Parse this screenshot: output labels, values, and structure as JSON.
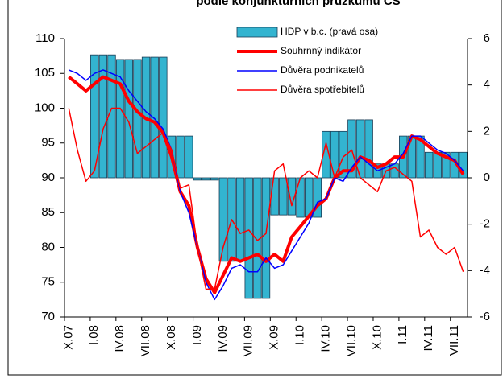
{
  "chart_data": {
    "type": "combo",
    "title": "podle konjunkturních průzkumů ČS",
    "categories": [
      "X.07",
      null,
      null,
      "I.08",
      null,
      null,
      "IV.08",
      null,
      null,
      "VII.08",
      null,
      null,
      "X.08",
      null,
      null,
      "I.09",
      null,
      null,
      "IV.09",
      null,
      null,
      "VII.09",
      null,
      null,
      "X.09",
      null,
      null,
      "I.10",
      null,
      null,
      "IV.10",
      null,
      null,
      "VII.10",
      null,
      null,
      "X.10",
      null,
      null,
      "I.11",
      null,
      null,
      "IV.11",
      null,
      null,
      "VII.11",
      null
    ],
    "series": [
      {
        "name": "HDP v b.c. (pravá osa)",
        "type": "bar",
        "axis": "y2",
        "color": "#33b4d0",
        "values": [
          null,
          null,
          null,
          5.3,
          5.3,
          5.3,
          5.1,
          5.1,
          5.1,
          5.2,
          5.2,
          5.2,
          1.8,
          1.8,
          1.8,
          -0.1,
          -0.1,
          -0.1,
          -3.6,
          -3.6,
          -3.6,
          -5.2,
          -5.2,
          -5.2,
          -1.6,
          -1.6,
          -1.6,
          -1.7,
          -1.7,
          -1.7,
          2.0,
          2.0,
          2.0,
          2.5,
          2.5,
          2.5,
          0.6,
          0.6,
          0.6,
          1.8,
          1.8,
          1.8,
          1.1,
          1.1,
          1.1,
          1.1,
          1.1
        ]
      },
      {
        "name": "Souhrnný indikátor",
        "type": "line",
        "color": "#ff0000",
        "width": 4,
        "values": [
          104.5,
          103.5,
          102.5,
          103.5,
          104.5,
          104,
          103.5,
          101,
          99.5,
          98.5,
          98,
          96.5,
          93,
          88,
          86,
          80,
          75.5,
          73.5,
          76,
          78.5,
          78,
          78.5,
          79,
          78,
          79,
          78,
          81.5,
          83,
          84.5,
          86,
          87,
          90,
          91,
          91,
          93,
          92.5,
          91.5,
          92,
          93,
          93,
          96,
          95.5,
          94.5,
          93.5,
          93,
          92.5,
          90.5
        ]
      },
      {
        "name": "Důvěra podnikatelů",
        "type": "line",
        "color": "#0000ff",
        "width": 1.5,
        "values": [
          105.5,
          105,
          104,
          105,
          105.5,
          105,
          104.5,
          102.5,
          101,
          99.5,
          98.5,
          97,
          94,
          88,
          85,
          80,
          75,
          72.5,
          74.5,
          77,
          77.5,
          76.5,
          76.5,
          78.5,
          77,
          77.5,
          79.5,
          81.5,
          83.5,
          86.5,
          87,
          90,
          89.5,
          91.5,
          93,
          92,
          91,
          91.5,
          92,
          93.5,
          96,
          96,
          95,
          94,
          93.5,
          92.5,
          91
        ]
      },
      {
        "name": "Důvěra spotřebitelů",
        "type": "line",
        "color": "#ff0000",
        "width": 1.5,
        "values": [
          100,
          94,
          89.5,
          91,
          97,
          100,
          100,
          98,
          93.5,
          94.5,
          95.5,
          96.5,
          94,
          88.5,
          89,
          80,
          74,
          74,
          80,
          84,
          82,
          82.5,
          81,
          82,
          91,
          92,
          86,
          90,
          91,
          90,
          95,
          90,
          93,
          94,
          90,
          89,
          88,
          91,
          91.5,
          90.5,
          89.5,
          81.5,
          82.5,
          80,
          79,
          80,
          76.5
        ]
      }
    ],
    "ylim": [
      70,
      110
    ],
    "yticks": [
      70,
      75,
      80,
      85,
      90,
      95,
      100,
      105,
      110
    ],
    "y2lim": [
      -6,
      6
    ],
    "y2ticks": [
      -6,
      -4,
      -2,
      0,
      2,
      4,
      6
    ],
    "legend": "top-right"
  }
}
